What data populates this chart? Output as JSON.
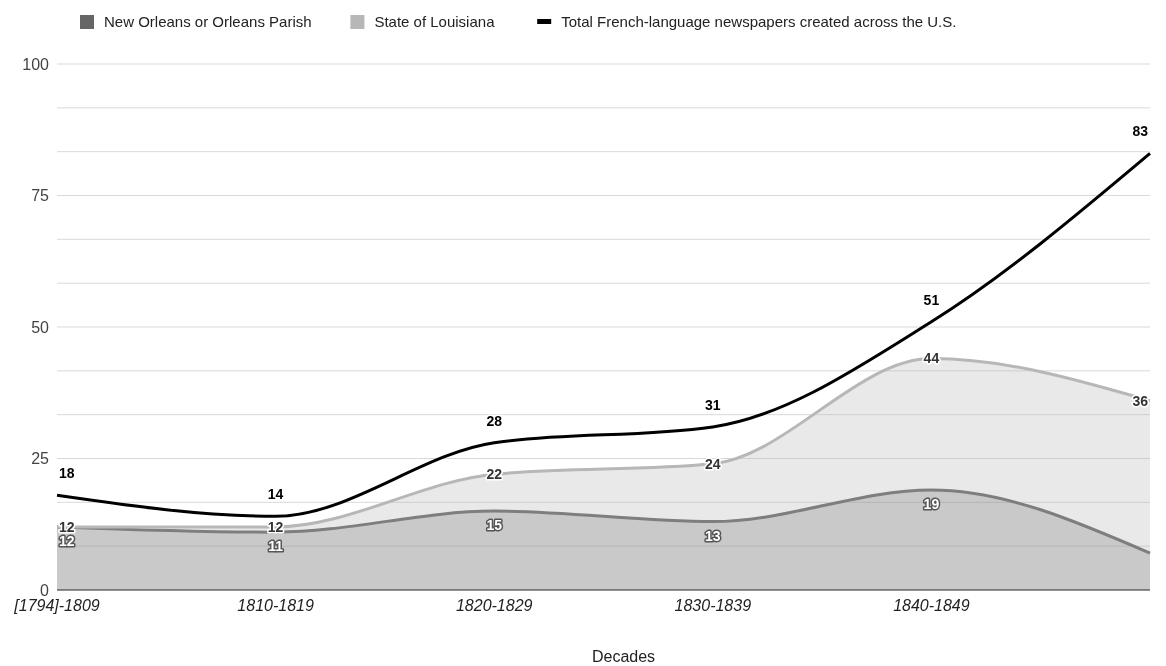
{
  "chart_data": {
    "type": "area",
    "xlabel": "Decades",
    "categories": [
      "[1794]-1809",
      "1810-1819",
      "1820-1829",
      "1830-1839",
      "1840-1849",
      null
    ],
    "series": [
      {
        "name": "New Orleans or Orleans Parish",
        "color": "#666666",
        "values": [
          12,
          11,
          15,
          13,
          19,
          7
        ],
        "value_labels": [
          "12",
          "11",
          "15",
          "13",
          "19",
          null
        ]
      },
      {
        "name": "State of Louisiana",
        "color": "#b7b7b7",
        "values": [
          12,
          12,
          22,
          24,
          44,
          36
        ],
        "value_labels": [
          "12",
          "12",
          "22",
          "24",
          "44",
          "36"
        ]
      },
      {
        "name": "Total French-language newspapers created across the U.S.",
        "type": "line",
        "color": "#000000",
        "values": [
          18,
          14,
          28,
          31,
          51,
          83
        ],
        "value_labels": [
          "18",
          "14",
          "28",
          "31",
          "51",
          "83"
        ]
      }
    ],
    "ylim": [
      0,
      100
    ],
    "yticks": [
      0,
      {
        "value": 8.33,
        "label": null
      },
      {
        "value": 16.67,
        "label": null
      },
      25,
      {
        "value": 33.33,
        "label": null
      },
      {
        "value": 41.67,
        "label": null
      },
      50,
      {
        "value": 58.33,
        "label": null
      },
      {
        "value": 66.67,
        "label": null
      },
      75,
      {
        "value": 83.33,
        "label": null
      },
      {
        "value": 91.67,
        "label": null
      },
      100
    ],
    "grid": "y",
    "legend": "top"
  }
}
